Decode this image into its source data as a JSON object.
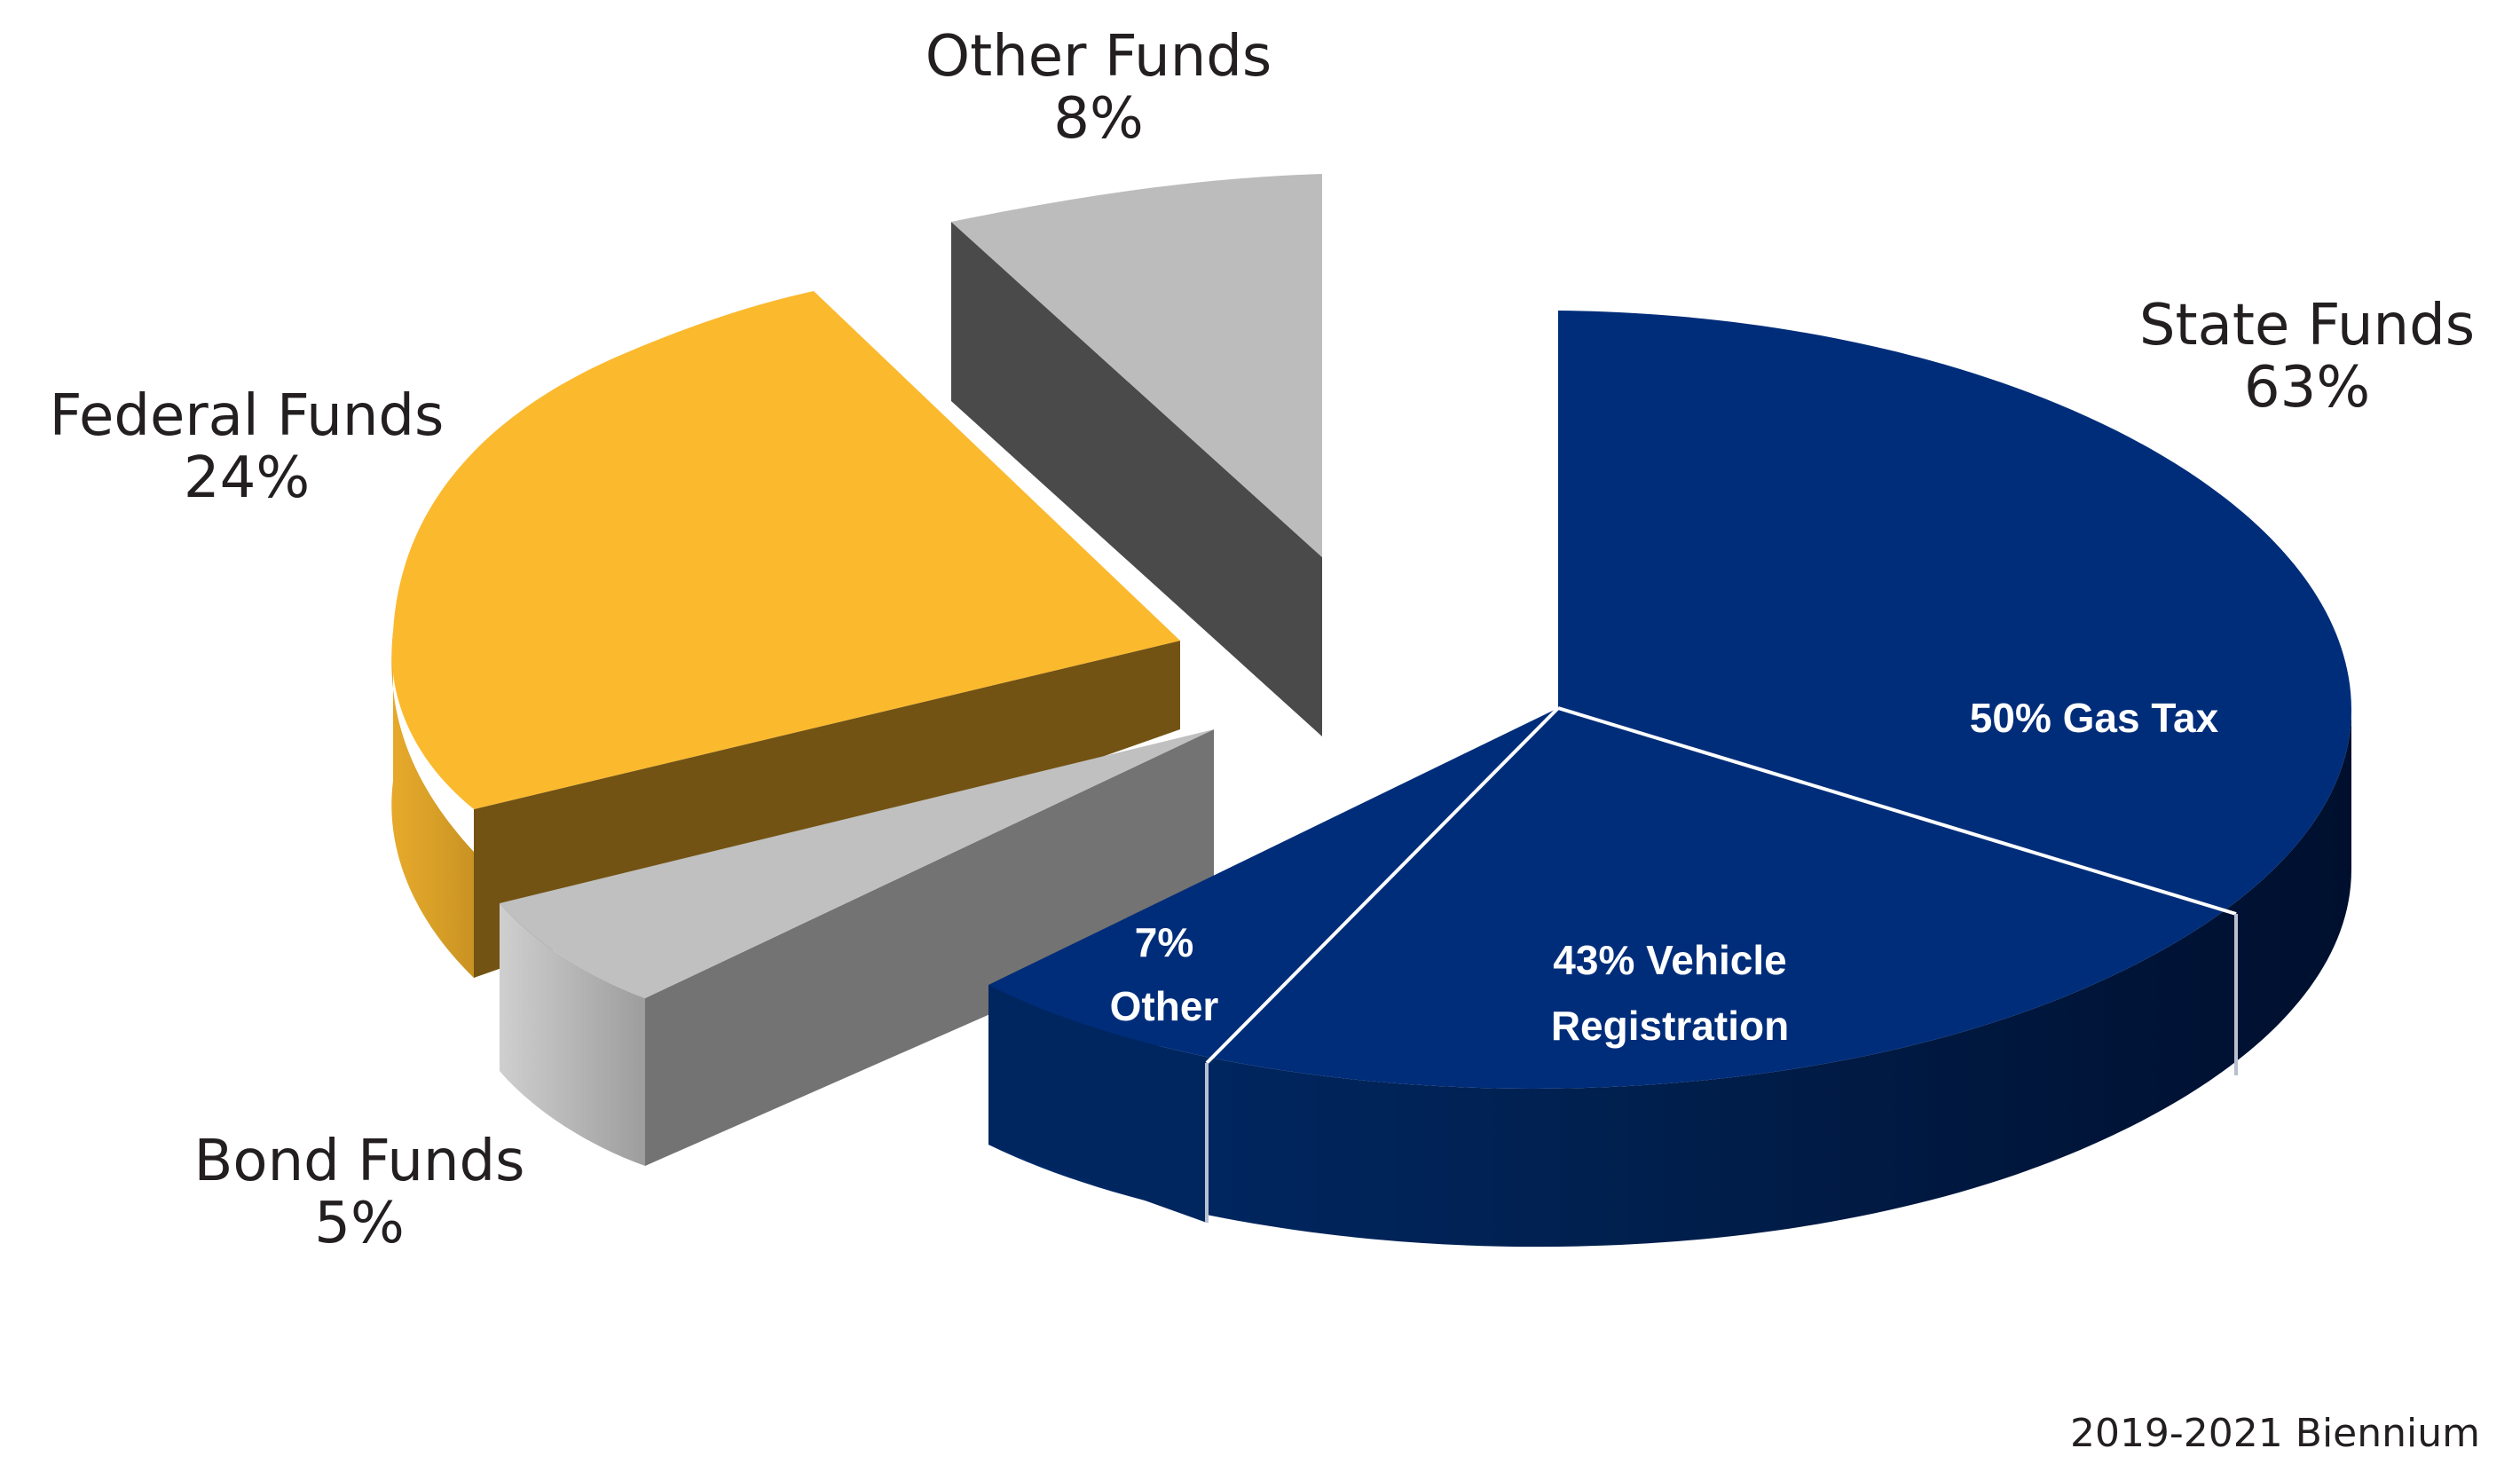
{
  "chart_data": {
    "type": "pie",
    "three_d": true,
    "exploded": true,
    "slices": [
      {
        "label": "State Funds",
        "value": 63,
        "value_label": "63%",
        "color": "#002d7a"
      },
      {
        "label": "Federal Funds",
        "value": 24,
        "value_label": "24%",
        "color": "#fbb92e"
      },
      {
        "label": "Bond Funds",
        "value": 5,
        "value_label": "5%",
        "color": "#c0c0c0"
      },
      {
        "label": "Other Funds",
        "value": 8,
        "value_label": "8%",
        "color": "#bcbcbc"
      }
    ],
    "state_funds_breakdown": [
      {
        "value": 50,
        "line1": "50% Gas Tax",
        "line2": ""
      },
      {
        "value": 43,
        "line1": "43% Vehicle",
        "line2": "Registration"
      },
      {
        "value": 7,
        "line1": "7%",
        "line2": "Other"
      }
    ],
    "footnote": "2019-2021 Biennium"
  }
}
